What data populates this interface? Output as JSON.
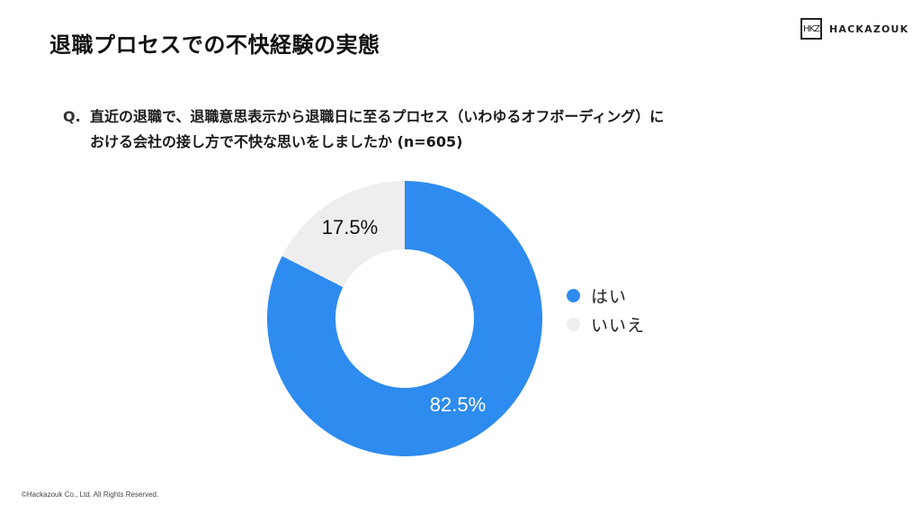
{
  "header": {
    "title": "退職プロセスでの不快経験の実態",
    "logo_mark": "HKZ",
    "logo_text": "HACKAZOUK"
  },
  "question": {
    "prefix": "Q.",
    "line1": "直近の退職で、退職意思表示から退職日に至るプロセス（いわゆるオフボーディング）に",
    "line2": "おける会社の接し方で不快な思いをしましたか (n=605)"
  },
  "colors": {
    "yes": "#2e8bef",
    "no": "#eeeeee",
    "label_on_yes": "#ffffff",
    "label_on_no": "#111111"
  },
  "chart_data": {
    "type": "pie",
    "variant": "donut",
    "title": "直近の退職で、退職意思表示から退職日に至るプロセス（いわゆるオフボーディング）における会社の接し方で不快な思いをしましたか (n=605)",
    "categories": [
      "はい",
      "いいえ"
    ],
    "values": [
      82.5,
      17.5
    ],
    "labels": [
      "82.5%",
      "17.5%"
    ],
    "colors": [
      "#2e8bef",
      "#eeeeee"
    ],
    "start_angle": "12 o'clock, clockwise",
    "legend_position": "right",
    "n": 605
  },
  "legend": {
    "items": [
      {
        "label": "はい",
        "color": "#2e8bef"
      },
      {
        "label": "いいえ",
        "color": "#eeeeee"
      }
    ]
  },
  "footer": {
    "copyright": "©Hackazouk Co., Ltd. All Rights Reserved."
  }
}
